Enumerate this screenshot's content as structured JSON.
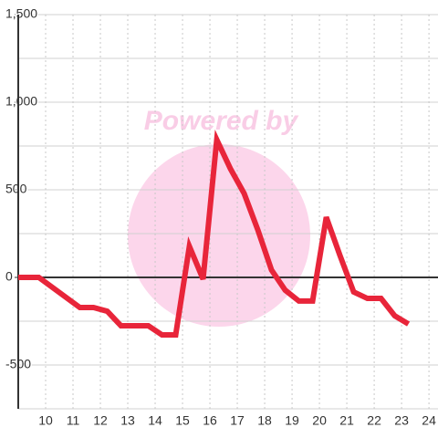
{
  "chart_data": {
    "type": "line",
    "watermark": "Powered by",
    "x": [
      9,
      9.75,
      11.25,
      11.75,
      12.25,
      12.75,
      13.25,
      13.75,
      14.25,
      14.75,
      15.25,
      15.75,
      16.25,
      16.75,
      17.25,
      17.75,
      18.25,
      18.75,
      19.25,
      19.75,
      20.25,
      20.75,
      21.25,
      21.75,
      22.25,
      22.75,
      23.25
    ],
    "series": [
      {
        "color": "#e8253a",
        "values": [
          0,
          0,
          -172,
          -172,
          -193,
          -276,
          -276,
          -276,
          -328,
          -328,
          177,
          -10,
          786,
          620,
          479,
          271,
          42,
          -73,
          -135,
          -135,
          344,
          125,
          -83,
          -120,
          -120,
          -219,
          -266
        ]
      }
    ],
    "xlim": [
      9,
      24.33
    ],
    "xticks": [
      10,
      11,
      12,
      13,
      14,
      15,
      16,
      17,
      18,
      19,
      20,
      21,
      22,
      23,
      24
    ],
    "ylim": [
      -750,
      1500
    ],
    "yticks": [
      -500,
      0,
      500,
      {
        "value": 1000,
        "label": "1,000"
      },
      {
        "value": 1500,
        "label": "1,500"
      }
    ],
    "yminor": [
      -750,
      -250,
      250,
      750,
      1250
    ],
    "grid": true
  }
}
